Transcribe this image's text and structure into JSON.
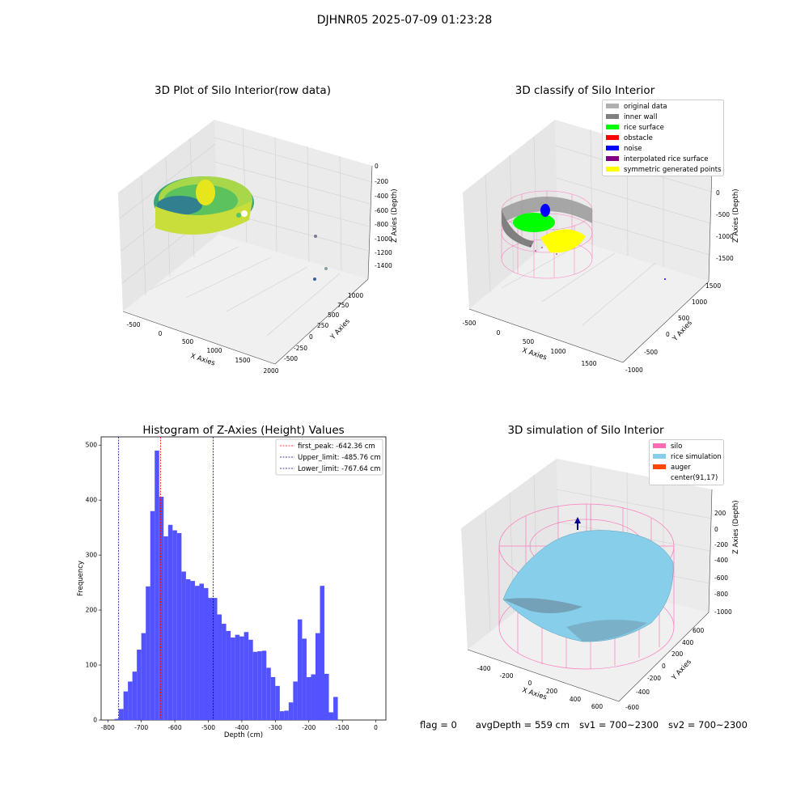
{
  "suptitle": "DJHNR05 2025-07-09 01:23:28",
  "panels": {
    "raw": {
      "title": "3D Plot of Silo Interior(row data)",
      "x_label": "X Axies",
      "y_label": "Y Axies",
      "z_label": "Z Axies (Depth)",
      "x_ticks": [
        "-500",
        "0",
        "500",
        "1000",
        "1500",
        "2000"
      ],
      "y_ticks": [
        "-500",
        "-250",
        "0",
        "250",
        "500",
        "750",
        "1000"
      ],
      "z_ticks": [
        "0",
        "-200",
        "-400",
        "-600",
        "-800",
        "-1000",
        "-1200",
        "-1400"
      ]
    },
    "classify": {
      "title": "3D classify of Silo Interior",
      "x_label": "X Axies",
      "y_label": "Y Axies",
      "z_label": "Z Axies (Depth)",
      "x_ticks": [
        "-500",
        "0",
        "500",
        "1000",
        "1500"
      ],
      "y_ticks": [
        "-1000",
        "-500",
        "0",
        "500",
        "1000",
        "1500"
      ],
      "z_ticks": [
        "0",
        "-500",
        "-1000",
        "-1500"
      ],
      "legend": [
        {
          "label": "original data",
          "color": "#b0b0b0"
        },
        {
          "label": "inner wall",
          "color": "#808080"
        },
        {
          "label": "rice surface",
          "color": "#00ff00"
        },
        {
          "label": "obstacle",
          "color": "#ff0000"
        },
        {
          "label": "noise",
          "color": "#0000ff"
        },
        {
          "label": "interpolated rice surface",
          "color": "#800080"
        },
        {
          "label": "symmetric generated points",
          "color": "#ffff00"
        }
      ]
    },
    "simulation": {
      "title": "3D simulation of Silo Interior",
      "x_label": "X Axies",
      "y_label": "Y Axies",
      "z_label": "Z Axies (Depth)",
      "x_ticks": [
        "-400",
        "-200",
        "0",
        "200",
        "400",
        "600"
      ],
      "y_ticks": [
        "-600",
        "-400",
        "-200",
        "0",
        "200",
        "400",
        "600"
      ],
      "z_ticks": [
        "200",
        "0",
        "-200",
        "-400",
        "-600",
        "-800",
        "-1000"
      ],
      "legend": [
        {
          "label": "silo",
          "color": "#ff69b4"
        },
        {
          "label": "rice simulation",
          "color": "#87ceeb"
        },
        {
          "label": "auger",
          "color": "#ff4500"
        },
        {
          "label": "center(91,17)",
          "color": "#ffffff"
        }
      ]
    }
  },
  "chart_data": {
    "type": "bar",
    "title": "Histogram of Z-Axies (Height) Values",
    "xlabel": "Depth (cm)",
    "ylabel": "Frequency",
    "xlim": [
      -820,
      30
    ],
    "ylim": [
      0,
      515
    ],
    "bin_start": -780,
    "bin_width": 13.33,
    "values": [
      2,
      20,
      52,
      70,
      88,
      128,
      158,
      243,
      380,
      490,
      406,
      334,
      355,
      345,
      340,
      270,
      256,
      253,
      244,
      248,
      240,
      222,
      222,
      192,
      175,
      162,
      150,
      155,
      152,
      160,
      146,
      124,
      125,
      126,
      95,
      78,
      62,
      16,
      17,
      32,
      70,
      183,
      148,
      78,
      83,
      158,
      244,
      84,
      14,
      42
    ],
    "bar_color": "#5252ff",
    "x_ticks": [
      -800,
      -700,
      -600,
      -500,
      -400,
      -300,
      -200,
      -100,
      0
    ],
    "y_ticks": [
      0,
      100,
      200,
      300,
      400,
      500
    ],
    "reference_lines": [
      {
        "label": "first_peak: -642.36 cm",
        "x": -642.36,
        "color": "#ff0000"
      },
      {
        "label": "Upper_limit: -485.76 cm",
        "x": -485.76,
        "color": "#00008b"
      },
      {
        "label": "Lower_limit: -767.64 cm",
        "x": -767.64,
        "color": "#00008b"
      }
    ],
    "legend_position": "top-right"
  },
  "footer": {
    "flag": "flag = 0",
    "avg_depth": "avgDepth = 559 cm",
    "sv1": "sv1 = 700~2300",
    "sv2": "sv2 = 700~2300"
  }
}
